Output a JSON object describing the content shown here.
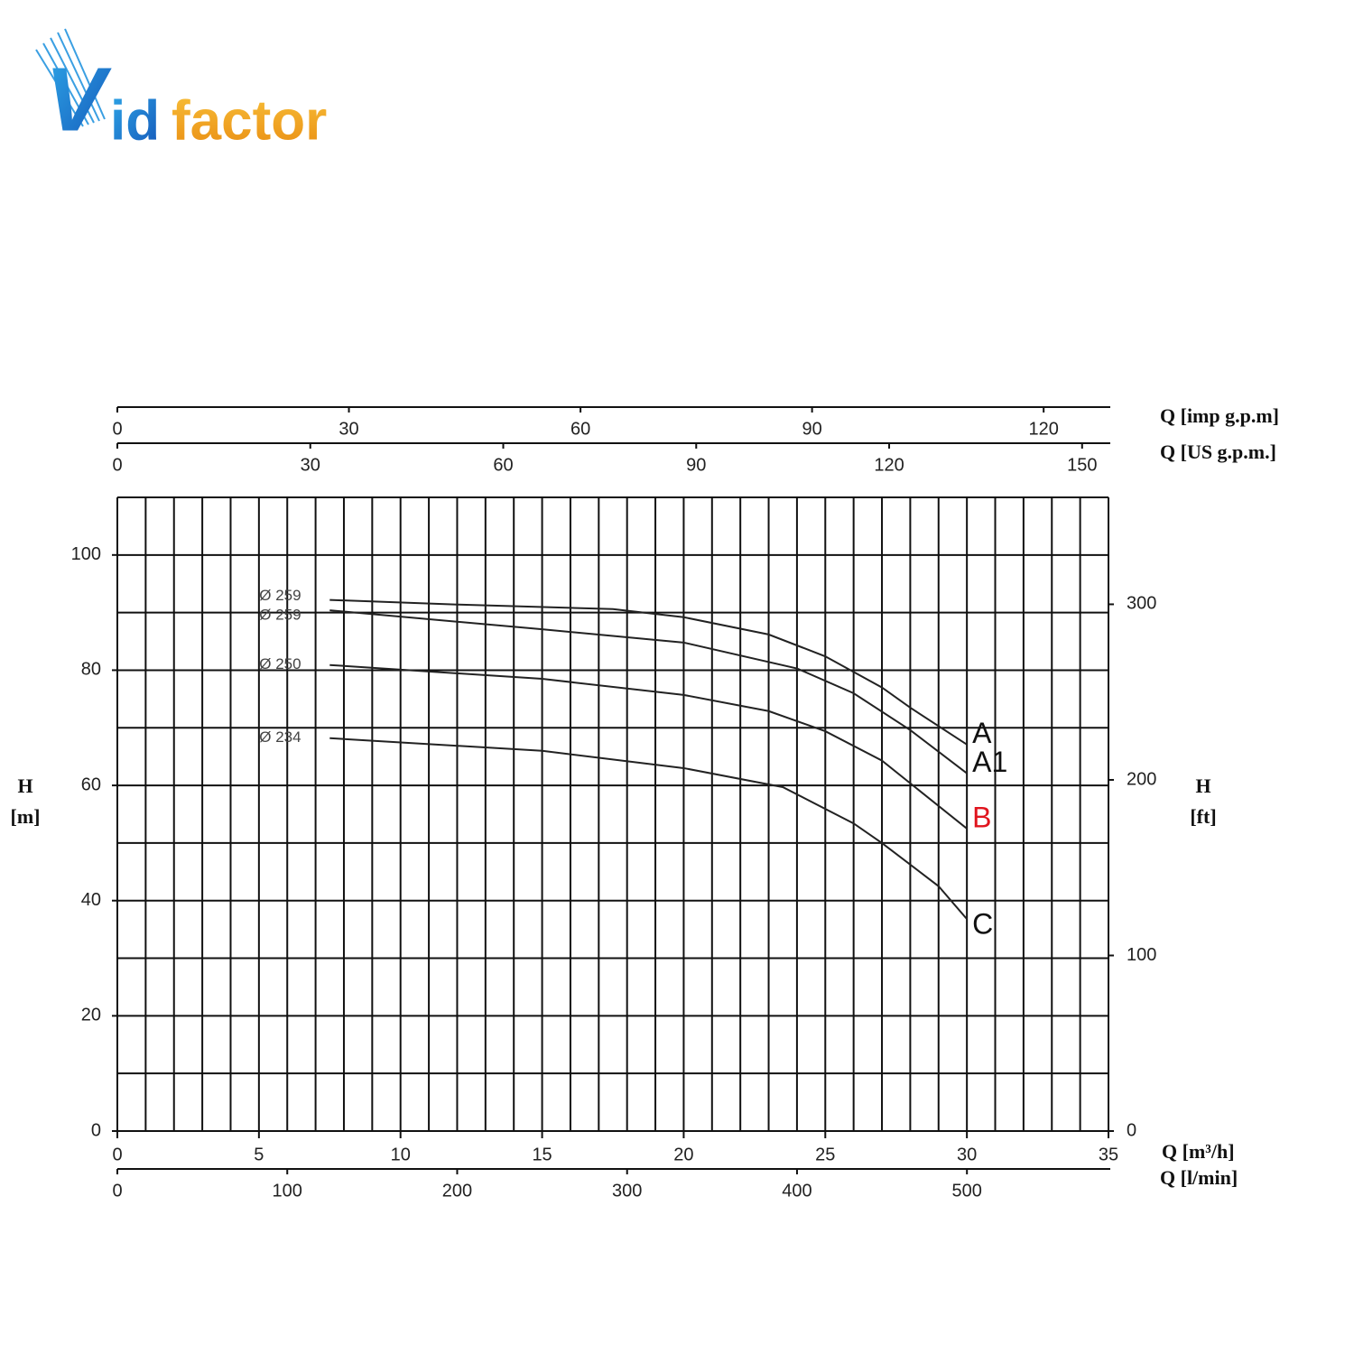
{
  "logo": {
    "parts": [
      "V",
      "id",
      "factor"
    ]
  },
  "chart_data": {
    "type": "line",
    "xlabel": "Q [m³/h]",
    "xlim": [
      0,
      35
    ],
    "xticks": [
      0,
      5,
      10,
      15,
      20,
      25,
      30,
      35
    ],
    "ylabel": [
      "H",
      "[m]"
    ],
    "ylim": [
      0,
      110
    ],
    "yticks": [
      0,
      20,
      40,
      60,
      80,
      100
    ],
    "y2label": [
      "H",
      "[ft]"
    ],
    "y2lim": [
      0,
      360.9
    ],
    "y2ticks": [
      0,
      100,
      200,
      300
    ],
    "grid": {
      "x_step": 1,
      "y_step": 10
    },
    "extra_x_axes": [
      {
        "label": "Q [imp g.p.m]",
        "position": "top",
        "lim": [
          0,
          128.4
        ],
        "ticks": [
          0,
          30,
          60,
          90,
          120
        ]
      },
      {
        "label": "Q [US g.p.m.]",
        "position": "top",
        "lim": [
          0,
          154.1
        ],
        "ticks": [
          0,
          30,
          60,
          90,
          120,
          150
        ]
      },
      {
        "label": "Q [l/min]",
        "position": "bottom",
        "lim": [
          0,
          583.3
        ],
        "ticks": [
          0,
          100,
          200,
          300,
          400,
          500
        ]
      }
    ],
    "series": [
      {
        "name": "Ø 259",
        "label": "A",
        "color": "#222",
        "label_color": "#111",
        "x": [
          7.5,
          12,
          17.5,
          20,
          23,
          25,
          27,
          28,
          30
        ],
        "values": [
          92.2,
          91.4,
          90.6,
          89.2,
          86.2,
          82.4,
          77,
          73.5,
          67.1
        ]
      },
      {
        "name": "Ø 259",
        "label": "A1",
        "color": "#222",
        "label_color": "#111",
        "x": [
          7.5,
          15,
          20,
          24,
          26,
          28,
          30
        ],
        "values": [
          90.4,
          87.1,
          84.8,
          80.3,
          76,
          69.6,
          62.1
        ]
      },
      {
        "name": "Ø 250",
        "label": "B",
        "color": "#222",
        "label_color": "#e0141e",
        "x": [
          7.5,
          15,
          20,
          23,
          25,
          27,
          30
        ],
        "values": [
          80.9,
          78.5,
          75.7,
          72.9,
          69.4,
          64.3,
          52.5
        ]
      },
      {
        "name": "Ø 234",
        "label": "C",
        "color": "#222",
        "label_color": "#111",
        "x": [
          7.5,
          15,
          20,
          23.5,
          26,
          27,
          29,
          30
        ],
        "values": [
          68.2,
          66,
          63,
          59.7,
          53.4,
          50,
          42.5,
          36.8
        ]
      }
    ]
  }
}
